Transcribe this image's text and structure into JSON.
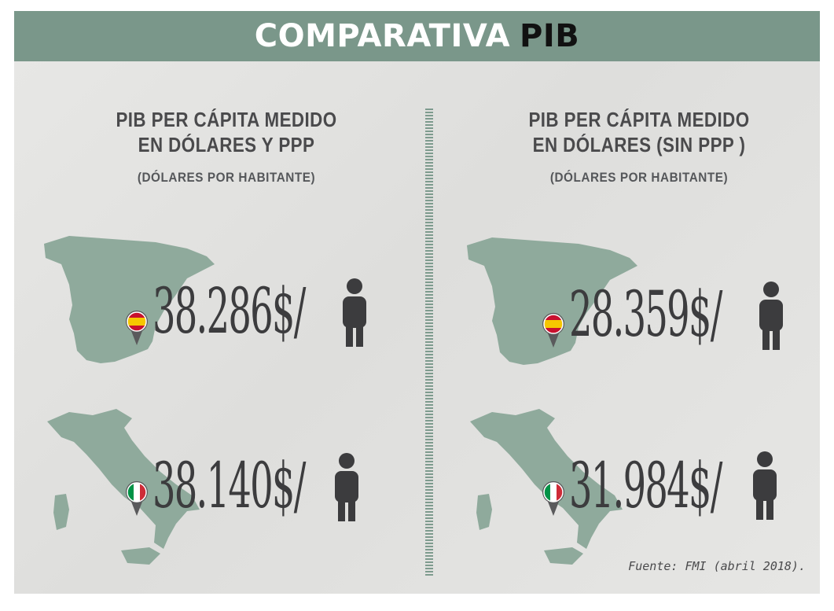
{
  "header": {
    "title_light": "COMPARATIVA",
    "title_dark": "PIB"
  },
  "columns": [
    {
      "title_line1": "PIB PER CÁPITA MEDIDO",
      "title_line2": "EN DÓLARES Y PPP",
      "subtitle": "(DÓLARES POR HABITANTE)",
      "spain_value": "38.286$/",
      "italy_value": "38.140$/"
    },
    {
      "title_line1": "PIB PER CÁPITA MEDIDO",
      "title_line2": "EN DÓLARES (SIN PPP )",
      "subtitle": "(DÓLARES POR HABITANTE)",
      "spain_value": "28.359$/",
      "italy_value": "31.984$/"
    }
  ],
  "source": "Fuente: FMI (abril 2018).",
  "colors": {
    "header_bg": "#7a978a",
    "map_fill": "#8faa9c",
    "text_dark": "#3c3c3e",
    "spain_red": "#c8102e",
    "spain_yellow": "#f6c700",
    "italy_green": "#009246",
    "italy_red": "#ce2b37"
  },
  "icons": [
    "spain-flag-pin-icon",
    "italy-flag-pin-icon",
    "person-icon",
    "spain-map",
    "italy-map"
  ]
}
